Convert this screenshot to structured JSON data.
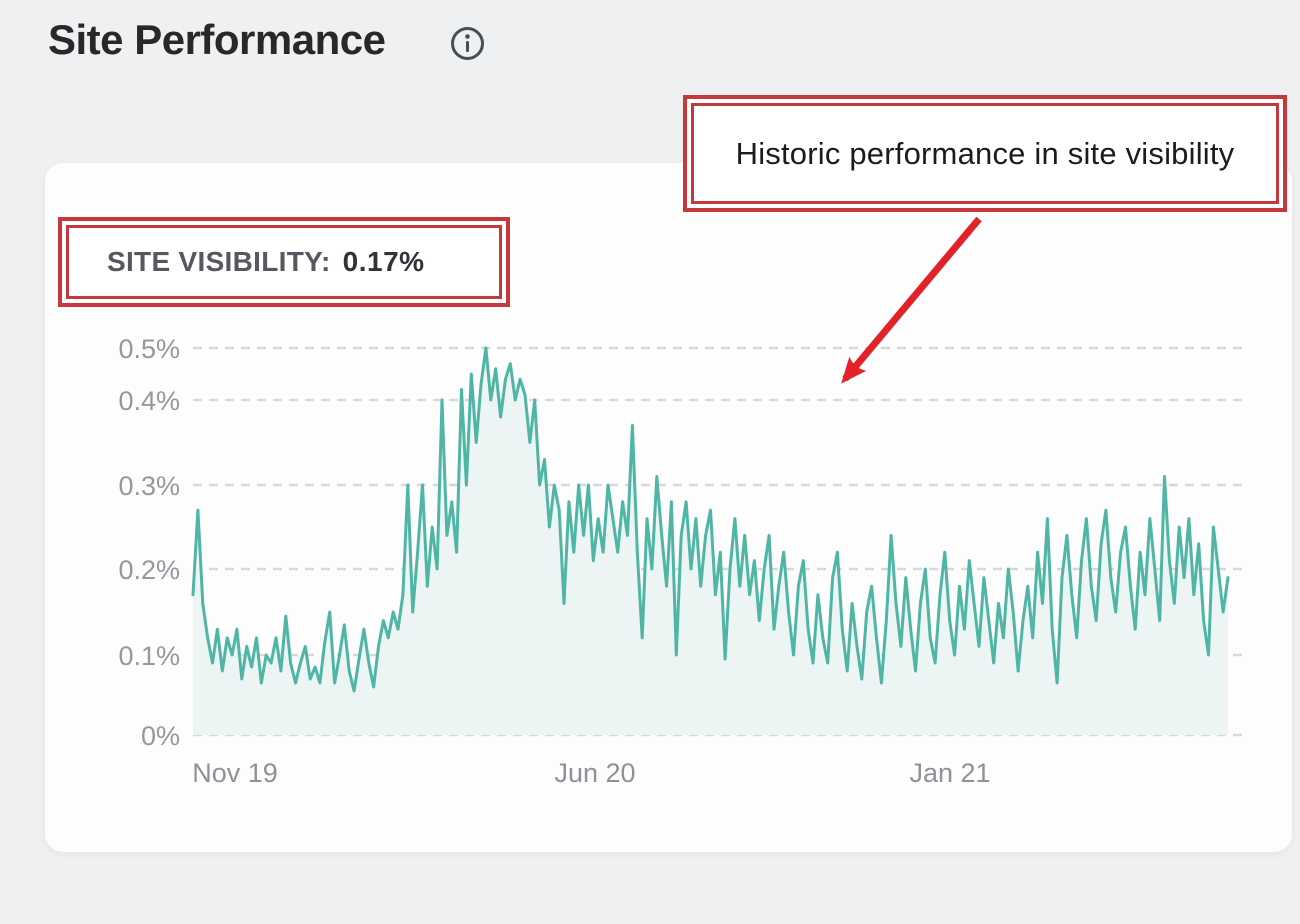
{
  "page": {
    "title": "Site Performance",
    "info_icon": "circled-i"
  },
  "visibility_badge": {
    "label": "SITE VISIBILITY:",
    "value": "0.17%"
  },
  "annotation": {
    "text": "Historic performance in site visibility",
    "border_color": "#c5393d",
    "arrow_color": "#e32227"
  },
  "chart_data": {
    "type": "line",
    "series": [
      {
        "name": "Site visibility",
        "unit": "%",
        "values": [
          0.17,
          0.27,
          0.16,
          0.12,
          0.09,
          0.13,
          0.08,
          0.12,
          0.1,
          0.13,
          0.07,
          0.11,
          0.085,
          0.12,
          0.065,
          0.1,
          0.09,
          0.12,
          0.08,
          0.145,
          0.09,
          0.065,
          0.09,
          0.11,
          0.07,
          0.085,
          0.065,
          0.115,
          0.15,
          0.065,
          0.1,
          0.135,
          0.08,
          0.055,
          0.095,
          0.13,
          0.09,
          0.06,
          0.11,
          0.14,
          0.12,
          0.15,
          0.13,
          0.17,
          0.3,
          0.15,
          0.22,
          0.3,
          0.18,
          0.25,
          0.2,
          0.4,
          0.24,
          0.28,
          0.22,
          0.42,
          0.3,
          0.45,
          0.35,
          0.43,
          0.5,
          0.4,
          0.46,
          0.38,
          0.44,
          0.47,
          0.4,
          0.44,
          0.41,
          0.35,
          0.4,
          0.3,
          0.33,
          0.25,
          0.3,
          0.27,
          0.16,
          0.28,
          0.22,
          0.3,
          0.24,
          0.3,
          0.21,
          0.26,
          0.22,
          0.3,
          0.26,
          0.22,
          0.28,
          0.24,
          0.37,
          0.22,
          0.12,
          0.26,
          0.2,
          0.31,
          0.24,
          0.18,
          0.28,
          0.1,
          0.24,
          0.28,
          0.2,
          0.26,
          0.18,
          0.24,
          0.27,
          0.17,
          0.22,
          0.095,
          0.2,
          0.26,
          0.18,
          0.24,
          0.17,
          0.21,
          0.14,
          0.2,
          0.24,
          0.13,
          0.18,
          0.22,
          0.15,
          0.1,
          0.18,
          0.21,
          0.13,
          0.09,
          0.17,
          0.12,
          0.09,
          0.19,
          0.22,
          0.13,
          0.08,
          0.16,
          0.11,
          0.07,
          0.15,
          0.18,
          0.12,
          0.065,
          0.14,
          0.24,
          0.16,
          0.11,
          0.19,
          0.13,
          0.08,
          0.16,
          0.2,
          0.12,
          0.09,
          0.17,
          0.22,
          0.14,
          0.1,
          0.18,
          0.13,
          0.21,
          0.16,
          0.11,
          0.19,
          0.14,
          0.09,
          0.16,
          0.12,
          0.2,
          0.15,
          0.08,
          0.14,
          0.18,
          0.12,
          0.22,
          0.16,
          0.26,
          0.13,
          0.065,
          0.19,
          0.24,
          0.17,
          0.12,
          0.21,
          0.26,
          0.18,
          0.14,
          0.23,
          0.27,
          0.19,
          0.15,
          0.22,
          0.25,
          0.18,
          0.13,
          0.22,
          0.17,
          0.26,
          0.2,
          0.14,
          0.31,
          0.21,
          0.16,
          0.25,
          0.19,
          0.26,
          0.17,
          0.23,
          0.14,
          0.1,
          0.25,
          0.2,
          0.15,
          0.19
        ]
      }
    ],
    "y_tick_labels": [
      "0%",
      "0.1%",
      "0.2%",
      "0.3%",
      "0.4%",
      "0.5%"
    ],
    "y_tick_values": [
      0,
      0.1,
      0.2,
      0.3,
      0.4,
      0.5
    ],
    "x_ticks": [
      {
        "label": "Nov 19",
        "pos": 0.041
      },
      {
        "label": "Jun 20",
        "pos": 0.388
      },
      {
        "label": "Jan 21",
        "pos": 0.731
      }
    ],
    "ylim": [
      0,
      0.5
    ],
    "xlabel": "",
    "ylabel": "",
    "grid": "horizontal-dashed",
    "legend": "none",
    "line_color": "#4fb6a6",
    "fill_color": "#edf4f4"
  }
}
